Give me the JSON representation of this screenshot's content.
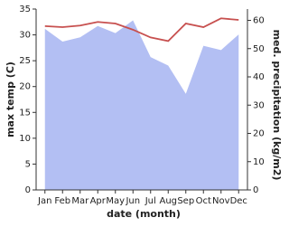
{
  "chart_data": {
    "type": "area-line",
    "categories": [
      "Jan",
      "Feb",
      "Mar",
      "Apr",
      "May",
      "Jun",
      "Jul",
      "Aug",
      "Sep",
      "Oct",
      "Nov",
      "Dec"
    ],
    "x_label": "date (month)",
    "y_label": "max temp (C)",
    "y2_label": "med. precipitation (kg/m2)",
    "ylim": [
      0,
      35
    ],
    "yticks": [
      0,
      5,
      10,
      15,
      20,
      25,
      30,
      35
    ],
    "y2lim": [
      0,
      64
    ],
    "y2ticks": [
      0,
      10,
      20,
      30,
      40,
      50,
      60
    ],
    "series": [
      {
        "name": "precipitation",
        "color": "#b3bff3",
        "axis": "y2",
        "kind": "area",
        "values": [
          57,
          52.5,
          54,
          58,
          55.5,
          60,
          47,
          44,
          34,
          51,
          49.5,
          55
        ]
      },
      {
        "name": "temperature",
        "color": "#c7504f",
        "kind": "line",
        "values": [
          31.7,
          31.5,
          31.8,
          32.5,
          32.2,
          31.0,
          29.5,
          28.8,
          32.2,
          31.5,
          33.2,
          32.9
        ]
      }
    ]
  }
}
